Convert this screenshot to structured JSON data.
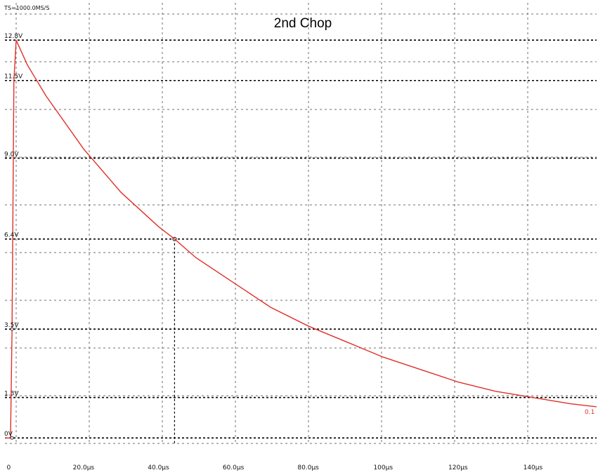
{
  "chart_data": {
    "type": "line",
    "title": "2nd Chop",
    "sample_rate_label": "TS=1000.0MS/S",
    "xlabel": "",
    "ylabel": "",
    "x_tick_labels": [
      "0",
      "20.0μs",
      "40.0μs",
      "60.0μs",
      "80.0μs",
      "100μs",
      "120μs",
      "140μs"
    ],
    "x_tick_values": [
      0,
      20,
      40,
      60,
      80,
      100,
      120,
      140
    ],
    "x_unit": "μs",
    "xlim": [
      -1,
      157
    ],
    "ylim": [
      -0.2,
      14.0
    ],
    "y_tick_labels": [
      {
        "label": "0V",
        "value": 0.0
      },
      {
        "label": "1.3V",
        "value": 1.3
      },
      {
        "label": "3.5V",
        "value": 3.5
      },
      {
        "label": "6.4V",
        "value": 6.4
      },
      {
        "label": "9.0V",
        "value": 9.0
      },
      {
        "label": "11.5V",
        "value": 11.5
      },
      {
        "label": "12.8V",
        "value": 12.8
      }
    ],
    "grid": true,
    "marker": {
      "x": 44.3,
      "y": 6.4
    },
    "end_label": "0.1",
    "series": [
      {
        "color": "#e0302a",
        "x": [
          -1,
          0.5,
          0.9,
          1.4,
          2.0,
          5,
          10,
          20,
          30,
          40,
          44.3,
          50,
          60,
          70,
          80,
          90,
          100,
          110,
          120,
          130,
          140,
          150,
          157
        ],
        "y": [
          0.0,
          0.0,
          3.5,
          11.5,
          12.8,
          12.0,
          11.0,
          9.3,
          7.9,
          6.8,
          6.4,
          5.8,
          5.0,
          4.2,
          3.6,
          3.1,
          2.6,
          2.2,
          1.8,
          1.5,
          1.3,
          1.1,
          1.0
        ]
      }
    ]
  }
}
